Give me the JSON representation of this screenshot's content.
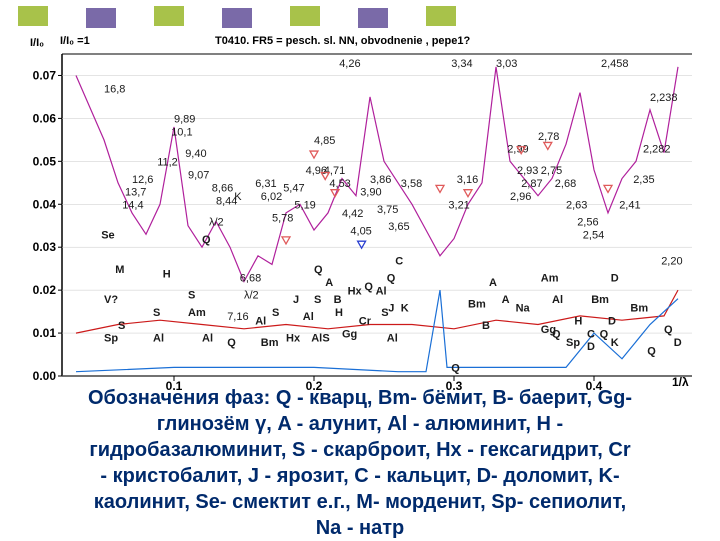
{
  "header_squares": [
    {
      "color": "#a8c24a"
    },
    {
      "color": "#7a6aa8"
    },
    {
      "color": "#a8c24a"
    },
    {
      "color": "#7a6aa8"
    },
    {
      "color": "#a8c24a"
    },
    {
      "color": "#7a6aa8"
    },
    {
      "color": "#a8c24a"
    }
  ],
  "chart_data": {
    "type": "line",
    "title_left": "I/I₀ =1",
    "title": "T0410. FR5 = pesch. sl. NN, obvodnenie ,  pepe1?",
    "ylabel": "I/I₀",
    "xlabel": "1/λ",
    "xlim": [
      0.02,
      0.47
    ],
    "ylim": [
      0,
      0.075
    ],
    "yticks": [
      "0.07",
      "0.06",
      "0.05",
      "0.04",
      "0.03",
      "0.02",
      "0.01",
      "0.00"
    ],
    "ytick_values": [
      0.07,
      0.06,
      0.05,
      0.04,
      0.03,
      0.02,
      0.01,
      0.0
    ],
    "xticks": [
      "0.1",
      "0.2",
      "0.3",
      "0.4"
    ],
    "xtick_values": [
      0.1,
      0.2,
      0.3,
      0.4
    ],
    "series": [
      {
        "color": "#b0209c",
        "values": [
          [
            0.03,
            0.07
          ],
          [
            0.05,
            0.055
          ],
          [
            0.06,
            0.045
          ],
          [
            0.07,
            0.038
          ],
          [
            0.08,
            0.033
          ],
          [
            0.09,
            0.04
          ],
          [
            0.1,
            0.058
          ],
          [
            0.11,
            0.035
          ],
          [
            0.12,
            0.03
          ],
          [
            0.13,
            0.036
          ],
          [
            0.14,
            0.03
          ],
          [
            0.15,
            0.022
          ],
          [
            0.16,
            0.028
          ],
          [
            0.17,
            0.026
          ],
          [
            0.18,
            0.038
          ],
          [
            0.19,
            0.04
          ],
          [
            0.2,
            0.034
          ],
          [
            0.21,
            0.038
          ],
          [
            0.22,
            0.046
          ],
          [
            0.23,
            0.042
          ],
          [
            0.24,
            0.065
          ],
          [
            0.25,
            0.05
          ],
          [
            0.26,
            0.045
          ],
          [
            0.27,
            0.04
          ],
          [
            0.28,
            0.034
          ],
          [
            0.29,
            0.028
          ],
          [
            0.3,
            0.032
          ],
          [
            0.31,
            0.04
          ],
          [
            0.32,
            0.045
          ],
          [
            0.33,
            0.072
          ],
          [
            0.34,
            0.05
          ],
          [
            0.35,
            0.046
          ],
          [
            0.36,
            0.042
          ],
          [
            0.37,
            0.046
          ],
          [
            0.38,
            0.054
          ],
          [
            0.39,
            0.066
          ],
          [
            0.4,
            0.048
          ],
          [
            0.41,
            0.038
          ],
          [
            0.42,
            0.046
          ],
          [
            0.43,
            0.05
          ],
          [
            0.44,
            0.062
          ],
          [
            0.45,
            0.052
          ],
          [
            0.46,
            0.072
          ]
        ]
      },
      {
        "color": "#cc1a1a",
        "values": [
          [
            0.03,
            0.01
          ],
          [
            0.06,
            0.012
          ],
          [
            0.09,
            0.013
          ],
          [
            0.12,
            0.012
          ],
          [
            0.15,
            0.011
          ],
          [
            0.18,
            0.012
          ],
          [
            0.21,
            0.011
          ],
          [
            0.24,
            0.012
          ],
          [
            0.27,
            0.012
          ],
          [
            0.3,
            0.011
          ],
          [
            0.33,
            0.013
          ],
          [
            0.36,
            0.012
          ],
          [
            0.39,
            0.014
          ],
          [
            0.42,
            0.013
          ],
          [
            0.45,
            0.014
          ],
          [
            0.46,
            0.02
          ]
        ]
      },
      {
        "color": "#1a6fd6",
        "values": [
          [
            0.03,
            0.001
          ],
          [
            0.1,
            0.002
          ],
          [
            0.2,
            0.002
          ],
          [
            0.26,
            0.001
          ],
          [
            0.28,
            0.001
          ],
          [
            0.29,
            0.02
          ],
          [
            0.295,
            0.002
          ],
          [
            0.38,
            0.002
          ],
          [
            0.4,
            0.01
          ],
          [
            0.42,
            0.004
          ],
          [
            0.44,
            0.012
          ],
          [
            0.46,
            0.018
          ]
        ]
      }
    ],
    "peak_labels": [
      {
        "text": "4,26",
        "x": 0.218,
        "y": 0.072
      },
      {
        "text": "3,34",
        "x": 0.298,
        "y": 0.072
      },
      {
        "text": "3,03",
        "x": 0.33,
        "y": 0.072
      },
      {
        "text": "2,458",
        "x": 0.405,
        "y": 0.072
      },
      {
        "text": "16,8",
        "x": 0.05,
        "y": 0.066
      },
      {
        "text": "9,89",
        "x": 0.1,
        "y": 0.059
      },
      {
        "text": "10,1",
        "x": 0.098,
        "y": 0.056
      },
      {
        "text": "9,40",
        "x": 0.108,
        "y": 0.051
      },
      {
        "text": "11,2",
        "x": 0.088,
        "y": 0.049
      },
      {
        "text": "9,07",
        "x": 0.11,
        "y": 0.046
      },
      {
        "text": "12,6",
        "x": 0.07,
        "y": 0.045
      },
      {
        "text": "13,7",
        "x": 0.065,
        "y": 0.042
      },
      {
        "text": "14,4",
        "x": 0.063,
        "y": 0.039
      },
      {
        "text": "8,66",
        "x": 0.127,
        "y": 0.043
      },
      {
        "text": "8,44",
        "x": 0.13,
        "y": 0.04
      },
      {
        "text": "K",
        "x": 0.143,
        "y": 0.041
      },
      {
        "text": "6,31",
        "x": 0.158,
        "y": 0.044
      },
      {
        "text": "6,02",
        "x": 0.162,
        "y": 0.041
      },
      {
        "text": "5,47",
        "x": 0.178,
        "y": 0.043
      },
      {
        "text": "5,78",
        "x": 0.17,
        "y": 0.036
      },
      {
        "text": "5,19",
        "x": 0.186,
        "y": 0.039
      },
      {
        "text": "4,96",
        "x": 0.194,
        "y": 0.047
      },
      {
        "text": "4,85",
        "x": 0.2,
        "y": 0.054
      },
      {
        "text": "4,71",
        "x": 0.207,
        "y": 0.047
      },
      {
        "text": "4,53",
        "x": 0.211,
        "y": 0.044
      },
      {
        "text": "4,42",
        "x": 0.22,
        "y": 0.037
      },
      {
        "text": "3,86",
        "x": 0.24,
        "y": 0.045
      },
      {
        "text": "3,90",
        "x": 0.233,
        "y": 0.042
      },
      {
        "text": "3,75",
        "x": 0.245,
        "y": 0.038
      },
      {
        "text": "3,58",
        "x": 0.262,
        "y": 0.044
      },
      {
        "text": "3,65",
        "x": 0.253,
        "y": 0.034
      },
      {
        "text": "4,05",
        "x": 0.226,
        "y": 0.033
      },
      {
        "text": "3,16",
        "x": 0.302,
        "y": 0.045
      },
      {
        "text": "3,21",
        "x": 0.296,
        "y": 0.039
      },
      {
        "text": "2,99",
        "x": 0.338,
        "y": 0.052
      },
      {
        "text": "2,78",
        "x": 0.36,
        "y": 0.055
      },
      {
        "text": "2,93",
        "x": 0.345,
        "y": 0.047
      },
      {
        "text": "2,75",
        "x": 0.362,
        "y": 0.047
      },
      {
        "text": "2,87",
        "x": 0.348,
        "y": 0.044
      },
      {
        "text": "2,68",
        "x": 0.372,
        "y": 0.044
      },
      {
        "text": "2,96",
        "x": 0.34,
        "y": 0.041
      },
      {
        "text": "2,63",
        "x": 0.38,
        "y": 0.039
      },
      {
        "text": "2,56",
        "x": 0.388,
        "y": 0.035
      },
      {
        "text": "2,54",
        "x": 0.392,
        "y": 0.032
      },
      {
        "text": "2,238",
        "x": 0.44,
        "y": 0.064
      },
      {
        "text": "2,282",
        "x": 0.435,
        "y": 0.052
      },
      {
        "text": "2,35",
        "x": 0.428,
        "y": 0.045
      },
      {
        "text": "2,41",
        "x": 0.418,
        "y": 0.039
      },
      {
        "text": "2,20",
        "x": 0.448,
        "y": 0.026
      },
      {
        "text": "6,68",
        "x": 0.147,
        "y": 0.022
      },
      {
        "text": "7,16",
        "x": 0.138,
        "y": 0.013
      },
      {
        "text": "λ/2",
        "x": 0.15,
        "y": 0.018
      },
      {
        "text": "λ/2",
        "x": 0.125,
        "y": 0.035
      }
    ],
    "phase_markers": [
      {
        "text": "Se",
        "x": 0.048,
        "y": 0.032
      },
      {
        "text": "Q",
        "x": 0.12,
        "y": 0.031
      },
      {
        "text": "M",
        "x": 0.058,
        "y": 0.024
      },
      {
        "text": "H",
        "x": 0.092,
        "y": 0.023
      },
      {
        "text": "V?",
        "x": 0.05,
        "y": 0.017
      },
      {
        "text": "S",
        "x": 0.11,
        "y": 0.018
      },
      {
        "text": "S",
        "x": 0.085,
        "y": 0.014
      },
      {
        "text": "Am",
        "x": 0.11,
        "y": 0.014
      },
      {
        "text": "S",
        "x": 0.06,
        "y": 0.011
      },
      {
        "text": "Sp",
        "x": 0.05,
        "y": 0.008
      },
      {
        "text": "Al",
        "x": 0.085,
        "y": 0.008
      },
      {
        "text": "Al",
        "x": 0.12,
        "y": 0.008
      },
      {
        "text": "Q",
        "x": 0.138,
        "y": 0.007
      },
      {
        "text": "Al",
        "x": 0.158,
        "y": 0.012
      },
      {
        "text": "Bm",
        "x": 0.162,
        "y": 0.007
      },
      {
        "text": "Hx",
        "x": 0.18,
        "y": 0.008
      },
      {
        "text": "S",
        "x": 0.17,
        "y": 0.014
      },
      {
        "text": "Al",
        "x": 0.192,
        "y": 0.013
      },
      {
        "text": "Al",
        "x": 0.198,
        "y": 0.008
      },
      {
        "text": "J",
        "x": 0.185,
        "y": 0.017
      },
      {
        "text": "S",
        "x": 0.2,
        "y": 0.017
      },
      {
        "text": "A",
        "x": 0.208,
        "y": 0.021
      },
      {
        "text": "B",
        "x": 0.214,
        "y": 0.017
      },
      {
        "text": "Hx",
        "x": 0.224,
        "y": 0.019
      },
      {
        "text": "Q",
        "x": 0.236,
        "y": 0.02
      },
      {
        "text": "Al",
        "x": 0.244,
        "y": 0.019
      },
      {
        "text": "H",
        "x": 0.215,
        "y": 0.014
      },
      {
        "text": "S",
        "x": 0.206,
        "y": 0.008
      },
      {
        "text": "Gg",
        "x": 0.22,
        "y": 0.009
      },
      {
        "text": "Cr",
        "x": 0.232,
        "y": 0.012
      },
      {
        "text": "S",
        "x": 0.248,
        "y": 0.014
      },
      {
        "text": "J",
        "x": 0.253,
        "y": 0.015
      },
      {
        "text": "K",
        "x": 0.262,
        "y": 0.015
      },
      {
        "text": "Al",
        "x": 0.252,
        "y": 0.008
      },
      {
        "text": "C",
        "x": 0.258,
        "y": 0.026
      },
      {
        "text": "Q",
        "x": 0.252,
        "y": 0.022
      },
      {
        "text": "Q",
        "x": 0.2,
        "y": 0.024
      },
      {
        "text": "Bm",
        "x": 0.31,
        "y": 0.016
      },
      {
        "text": "A",
        "x": 0.325,
        "y": 0.021
      },
      {
        "text": "B",
        "x": 0.32,
        "y": 0.011
      },
      {
        "text": "A",
        "x": 0.334,
        "y": 0.017
      },
      {
        "text": "Na",
        "x": 0.344,
        "y": 0.015
      },
      {
        "text": "Am",
        "x": 0.362,
        "y": 0.022
      },
      {
        "text": "Al",
        "x": 0.37,
        "y": 0.017
      },
      {
        "text": "Sp",
        "x": 0.38,
        "y": 0.007
      },
      {
        "text": "Gg",
        "x": 0.362,
        "y": 0.01
      },
      {
        "text": "Q",
        "x": 0.37,
        "y": 0.009
      },
      {
        "text": "H",
        "x": 0.386,
        "y": 0.012
      },
      {
        "text": "Bm",
        "x": 0.398,
        "y": 0.017
      },
      {
        "text": "D",
        "x": 0.412,
        "y": 0.022
      },
      {
        "text": "Bm",
        "x": 0.426,
        "y": 0.015
      },
      {
        "text": "D",
        "x": 0.41,
        "y": 0.012
      },
      {
        "text": "C",
        "x": 0.395,
        "y": 0.009
      },
      {
        "text": "Q",
        "x": 0.404,
        "y": 0.009
      },
      {
        "text": "K",
        "x": 0.412,
        "y": 0.007
      },
      {
        "text": "D",
        "x": 0.395,
        "y": 0.006
      },
      {
        "text": "Q",
        "x": 0.438,
        "y": 0.005
      },
      {
        "text": "Q",
        "x": 0.45,
        "y": 0.01
      },
      {
        "text": "D",
        "x": 0.457,
        "y": 0.007
      },
      {
        "text": "Q",
        "x": 0.298,
        "y": 0.001
      }
    ],
    "triangles": [
      {
        "x": 0.2,
        "y": 0.051,
        "color": "#e05a5a"
      },
      {
        "x": 0.208,
        "y": 0.046,
        "color": "#e05a5a"
      },
      {
        "x": 0.215,
        "y": 0.042,
        "color": "#e05a5a"
      },
      {
        "x": 0.18,
        "y": 0.031,
        "color": "#e05a5a"
      },
      {
        "x": 0.29,
        "y": 0.043,
        "color": "#e05a5a"
      },
      {
        "x": 0.31,
        "y": 0.042,
        "color": "#e05a5a"
      },
      {
        "x": 0.348,
        "y": 0.052,
        "color": "#e05a5a"
      },
      {
        "x": 0.367,
        "y": 0.053,
        "color": "#e05a5a"
      },
      {
        "x": 0.41,
        "y": 0.043,
        "color": "#e05a5a"
      },
      {
        "x": 0.234,
        "y": 0.03,
        "color": "#2a3fd0"
      }
    ]
  },
  "caption_lines": [
    "Обозначения фаз: Q - кварц, Bm- бёмит, B- баерит, Gg-",
    "глинозём γ, A - алунит, Al - алюминит, H -",
    "гидробазалюминит, S - скарброит, Hx - гексагидрит, Cr",
    "- кристобалит, J - ярозит, C - кальцит, D- доломит, K-",
    "каолинит, Se- смектит е.г., M- морденит, Sp- сепиолит,",
    "Na - натр"
  ]
}
